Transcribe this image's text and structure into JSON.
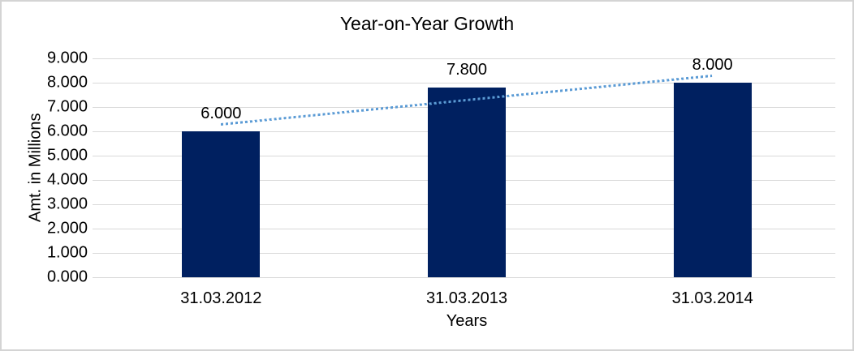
{
  "chart_data": {
    "type": "bar",
    "title": "Year-on-Year Growth",
    "xlabel": "Years",
    "ylabel": "Amt. in Millions",
    "categories": [
      "31.03.2012",
      "31.03.2013",
      "31.03.2014"
    ],
    "values": [
      6.0,
      7.8,
      8.0
    ],
    "value_labels": [
      "6.000",
      "7.800",
      "8.000"
    ],
    "ylim": [
      0,
      9
    ],
    "ytick_step": 1,
    "ytick_labels": [
      "0.000",
      "1.000",
      "2.000",
      "3.000",
      "4.000",
      "5.000",
      "6.000",
      "7.000",
      "8.000",
      "9.000"
    ],
    "grid": true,
    "legend": "none",
    "colors": {
      "bar": "#002060",
      "gridline": "#D9D9D9",
      "trendline": "#5B9BD5",
      "text": "#000000"
    },
    "trendline": {
      "type": "linear",
      "style": "dotted",
      "start_value": 6.27,
      "end_value": 8.27
    }
  }
}
